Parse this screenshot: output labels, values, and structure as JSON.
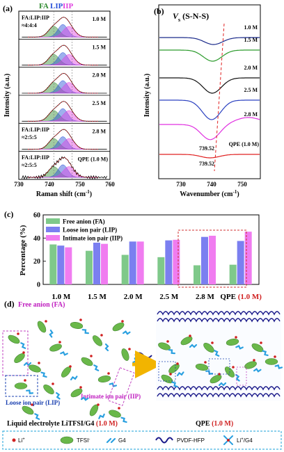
{
  "panel_a": {
    "label": "(a)",
    "legend": {
      "fa": "FA",
      "lip": "LIP",
      "iip": "IIP"
    },
    "colors": {
      "fa": "#2e8b2e",
      "lip": "#2850d8",
      "iip": "#e040e0"
    },
    "ratio_label_1": "FA:LIP:IIP",
    "ratio_value_1": "≈4:4:4",
    "ratio_label_2": "FA:LIP:IIP",
    "ratio_value_2": "≈2:5:5",
    "ratio_label_3": "FA:LIP:IIP",
    "ratio_value_3": "≈2:5:5",
    "concentrations": [
      "1.0 M",
      "1.5 M",
      "2.0 M",
      "2.5 M",
      "2.8 M",
      "QPE (1.0 M)"
    ],
    "xlabel": "Raman shift (cm",
    "xlabel_sup": "-1",
    "xlabel_end": ")",
    "ylabel": "Intensity (a.u.)",
    "xticks": [
      "730",
      "740",
      "750",
      "760"
    ]
  },
  "panel_b": {
    "label": "(b)",
    "title_v": "V",
    "title_sub": "s",
    "title_rest": " (S-N-S)",
    "curve_labels": [
      "1.0 M",
      "1.5 M",
      "2.0 M",
      "2.5 M",
      "2.8 M",
      "QPE (1.0 M)"
    ],
    "curve_colors": [
      "#1a2a8a",
      "#2a9a2a",
      "#111111",
      "#2a40c0",
      "#e030e0",
      "#e02020"
    ],
    "peak_labels": [
      "739.52",
      "739.52"
    ],
    "xlabel": "Wavenumber (cm",
    "xlabel_sup": "-1",
    "xlabel_end": ")",
    "ylabel": "Intensity (a.u.)",
    "xticks": [
      "730",
      "740",
      "750"
    ]
  },
  "panel_c": {
    "label": "(c)",
    "chart_data": {
      "type": "bar",
      "categories": [
        "1.0 M",
        "1.5 M",
        "2.0 M",
        "2.5 M",
        "2.8 M",
        "QPE"
      ],
      "series": [
        {
          "name": "Free anion (FA)",
          "color": "#7fc98a",
          "values": [
            34.5,
            29,
            25.5,
            23.5,
            16.5,
            17
          ]
        },
        {
          "name": "Loose ion pair (LIP)",
          "color": "#7b7ff0",
          "values": [
            33.5,
            36,
            37,
            38,
            41,
            37.5
          ]
        },
        {
          "name": "Intimate ion pair (IIP)",
          "color": "#f07cf0",
          "values": [
            32,
            35,
            37,
            38.5,
            42,
            45.5
          ]
        }
      ],
      "ylim": [
        0,
        60
      ],
      "yticks": [
        "0",
        "20",
        "40",
        "60"
      ],
      "ylabel": "Percentage (%)",
      "xlabel": ""
    },
    "qpe_suffix": "(1.0 M)"
  },
  "panel_d": {
    "label": "(d)",
    "free_anion": "Free anion (FA)",
    "loose_ion_pair": "Loose ion pair (LIP)",
    "intimate_ion_pair": "Intimate ion pair (IIP)",
    "caption_left": "Liquid electrolyte LiTFSI/G4",
    "caption_left_conc": "(1.0 M)",
    "caption_right": "QPE",
    "caption_right_conc": "(1.0 M)",
    "legend": [
      "Li",
      "TFSI",
      "G4",
      "PVDF-HFP",
      "Li",
      "/G4"
    ],
    "legend_li_sup": "+",
    "legend_tfsi_sup": "-"
  }
}
